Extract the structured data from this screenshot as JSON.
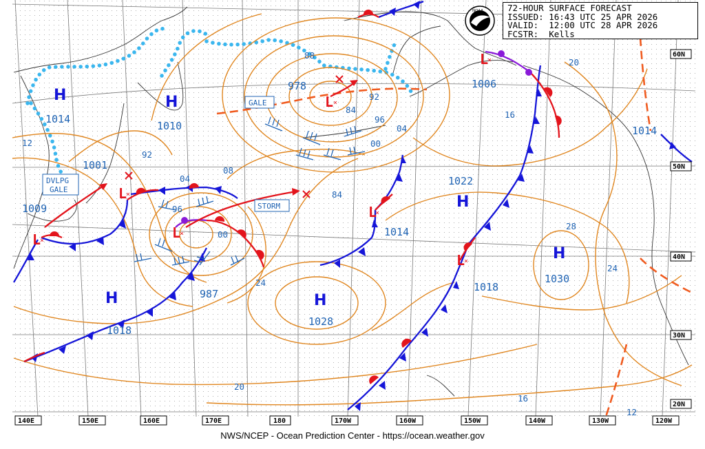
{
  "header": {
    "line1": "72-HOUR SURFACE FORECAST",
    "line2": "ISSUED: 16:43 UTC 25 APR 2026",
    "line3": "VALID:  12:00 UTC 28 APR 2026",
    "line4": "FCSTR:  Kells"
  },
  "footer": "NWS/NCEP - Ocean Prediction Center - https://ocean.weather.gov",
  "longitudes": [
    "140E",
    "150E",
    "160E",
    "170E",
    "180",
    "170W",
    "160W",
    "150W",
    "140W",
    "130W",
    "120W"
  ],
  "latitudes": [
    "60N",
    "50N",
    "40N",
    "30N",
    "20N"
  ],
  "pressure_systems": [
    {
      "type": "H",
      "value": "1014"
    },
    {
      "type": "H",
      "value": "1010"
    },
    {
      "type": "H",
      "value": "1022"
    },
    {
      "type": "H",
      "value": "1030"
    },
    {
      "type": "H",
      "value": "1018"
    },
    {
      "type": "H",
      "value": "1028"
    },
    {
      "type": "H",
      "value": "1014"
    },
    {
      "type": "L",
      "value": "978"
    },
    {
      "type": "L",
      "value": "1006"
    },
    {
      "type": "L",
      "value": "1001"
    },
    {
      "type": "L",
      "value": "1009"
    },
    {
      "type": "L",
      "value": "987"
    },
    {
      "type": "L",
      "value": "1014"
    },
    {
      "type": "L",
      "value": "1018"
    }
  ],
  "warnings": [
    "GALE",
    "STORM",
    "DVLPG",
    "GALE"
  ],
  "isobar_labels": [
    "88",
    "92",
    "84",
    "96",
    "00",
    "04",
    "08",
    "92",
    "04",
    "96",
    "00",
    "84",
    "24",
    "20",
    "16",
    "20",
    "28",
    "24",
    "16",
    "12",
    "12"
  ],
  "colors": {
    "isobar": "#e0861f",
    "cold_front": "#1515d8",
    "warm_front": "#e3141c",
    "occluded_front": "#8a1ad8",
    "ice_edge": "#3ab6ee",
    "label_text": "#1f63b3",
    "trough": "#f05a1e"
  }
}
